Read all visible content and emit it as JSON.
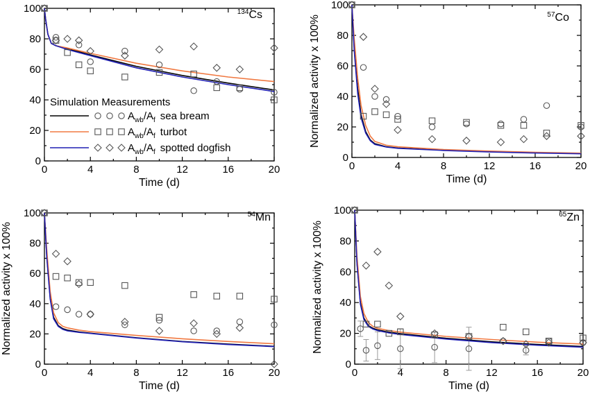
{
  "colors": {
    "sea_bream": "#000000",
    "turbot": "#F07840",
    "spotted_dogfish": "#1F1FB4",
    "marker": "#555555",
    "error_bar": "#999999"
  },
  "legend": {
    "header": "Simulation Measurements",
    "a_wb": "A",
    "wb_sub": "wb",
    "a_f": "/A",
    "f_sub": "f",
    "entries": [
      {
        "name": "sea bream",
        "marker": "circle"
      },
      {
        "name": "turbot",
        "marker": "square"
      },
      {
        "name": "spotted dogfish",
        "marker": "diamond"
      }
    ]
  },
  "chart_data": [
    {
      "type": "line",
      "panel": "top-left",
      "isotope_mass": "134",
      "isotope_symbol": "Cs",
      "xlabel": "Time (d)",
      "ylabel": "",
      "xlim": [
        0,
        20
      ],
      "ylim": [
        0,
        100
      ],
      "xticks": [
        0,
        4,
        8,
        12,
        16,
        20
      ],
      "yticks": [
        0,
        20,
        40,
        60,
        80,
        100
      ],
      "model": [
        {
          "name": "sea bream",
          "color": "#000000",
          "x": [
            0,
            0.1,
            0.3,
            0.6,
            1,
            2,
            4,
            8,
            12,
            16,
            20
          ],
          "y": [
            100,
            93,
            83,
            77,
            75.5,
            73.5,
            69.5,
            62,
            56,
            51,
            46.5
          ]
        },
        {
          "name": "turbot",
          "color": "#F07840",
          "x": [
            0,
            0.1,
            0.3,
            0.6,
            1,
            2,
            4,
            8,
            12,
            16,
            20
          ],
          "y": [
            100,
            93,
            83,
            77,
            75.5,
            74,
            70.5,
            64,
            59,
            55,
            52
          ]
        },
        {
          "name": "spotted dogfish",
          "color": "#1F1FB4",
          "x": [
            0,
            0.1,
            0.3,
            0.6,
            1,
            2,
            4,
            8,
            12,
            16,
            20
          ],
          "y": [
            100,
            93,
            83,
            77,
            75.5,
            73,
            69,
            61,
            55,
            50,
            45.5
          ]
        }
      ],
      "measurements": [
        {
          "name": "sea bream",
          "marker": "circle",
          "x": [
            0,
            1,
            3,
            4,
            7,
            10,
            13,
            15,
            17,
            20
          ],
          "y": [
            100,
            81,
            76,
            65,
            72,
            63,
            46,
            52,
            47,
            45
          ]
        },
        {
          "name": "turbot",
          "marker": "square",
          "x": [
            0,
            1,
            2,
            3,
            4,
            7,
            10,
            13,
            15,
            17,
            20
          ],
          "y": [
            100,
            79,
            71,
            63,
            59,
            55,
            58,
            57,
            48,
            48,
            40
          ]
        },
        {
          "name": "spotted dogfish",
          "marker": "diamond",
          "x": [
            0,
            1,
            2,
            3,
            4,
            7,
            10,
            13,
            15,
            17,
            20
          ],
          "y": [
            100,
            79,
            80,
            79,
            72,
            69,
            73,
            75,
            61,
            60,
            74
          ]
        }
      ]
    },
    {
      "type": "line",
      "panel": "top-right",
      "isotope_mass": "57",
      "isotope_symbol": "Co",
      "xlabel": "Time (d)",
      "ylabel": "Normalized activity x 100%",
      "xlim": [
        0,
        20
      ],
      "ylim": [
        0,
        100
      ],
      "xticks": [
        0,
        4,
        8,
        12,
        16,
        20
      ],
      "yticks": [
        0,
        20,
        40,
        60,
        80,
        100
      ],
      "model": [
        {
          "name": "sea bream",
          "color": "#000000",
          "x": [
            0,
            0.2,
            0.5,
            0.8,
            1.2,
            1.6,
            2,
            3,
            4,
            8,
            12,
            16,
            20
          ],
          "y": [
            100,
            72,
            45,
            28,
            17,
            11.5,
            9,
            7,
            6.2,
            4.8,
            3.8,
            3.1,
            2.6
          ]
        },
        {
          "name": "turbot",
          "color": "#F07840",
          "x": [
            0,
            0.2,
            0.5,
            0.8,
            1.2,
            1.6,
            2,
            3,
            4,
            8,
            12,
            16,
            20
          ],
          "y": [
            100,
            78,
            52,
            34,
            21,
            14,
            10.5,
            8,
            7,
            5.2,
            4.2,
            3.4,
            2.8
          ]
        },
        {
          "name": "spotted dogfish",
          "color": "#1F1FB4",
          "x": [
            0,
            0.2,
            0.5,
            0.8,
            1.2,
            1.6,
            2,
            3,
            4,
            8,
            12,
            16,
            20
          ],
          "y": [
            100,
            70,
            42,
            26,
            16,
            11,
            8.5,
            6.8,
            6,
            4.6,
            3.6,
            2.9,
            2.4
          ]
        }
      ],
      "measurements": [
        {
          "name": "sea bream",
          "marker": "circle",
          "x": [
            0,
            1,
            2,
            3,
            4,
            7,
            10,
            13,
            15,
            17,
            20
          ],
          "y": [
            100,
            59,
            40,
            38,
            27,
            20,
            22,
            22,
            25,
            34,
            20
          ]
        },
        {
          "name": "turbot",
          "marker": "square",
          "x": [
            0,
            1,
            2,
            3,
            4,
            7,
            10,
            13,
            15,
            17,
            20
          ],
          "y": [
            100,
            27,
            30,
            28,
            25,
            24,
            23,
            21,
            21,
            16,
            21
          ]
        },
        {
          "name": "spotted dogfish",
          "marker": "diamond",
          "x": [
            0,
            1,
            2,
            3,
            4,
            7,
            10,
            13,
            15,
            17,
            20
          ],
          "y": [
            100,
            79,
            45,
            35,
            18,
            12,
            11,
            10,
            12,
            14,
            14
          ]
        }
      ]
    },
    {
      "type": "line",
      "panel": "bottom-left",
      "isotope_mass": "54",
      "isotope_symbol": "Mn",
      "xlabel": "Time (d)",
      "ylabel": "Normalized activity x 100%",
      "xlim": [
        0,
        20
      ],
      "ylim": [
        0,
        100
      ],
      "xticks": [
        0,
        4,
        8,
        12,
        16,
        20
      ],
      "yticks": [
        0,
        20,
        40,
        60,
        80,
        100
      ],
      "model": [
        {
          "name": "sea bream",
          "color": "#000000",
          "x": [
            0,
            0.2,
            0.5,
            0.8,
            1.2,
            1.6,
            2,
            3,
            4,
            8,
            12,
            16,
            20
          ],
          "y": [
            100,
            72,
            44,
            31,
            25.5,
            23.5,
            22.5,
            21.3,
            20.5,
            17.5,
            15,
            13.3,
            11.8
          ]
        },
        {
          "name": "turbot",
          "color": "#F07840",
          "x": [
            0,
            0.2,
            0.5,
            0.8,
            1.2,
            1.6,
            2,
            3,
            4,
            8,
            12,
            16,
            20
          ],
          "y": [
            100,
            76,
            48,
            34,
            27.5,
            25,
            24,
            22.5,
            21.5,
            19,
            16.8,
            15,
            13.5
          ]
        },
        {
          "name": "spotted dogfish",
          "color": "#1F1FB4",
          "x": [
            0,
            0.2,
            0.5,
            0.8,
            1.2,
            1.6,
            2,
            3,
            4,
            8,
            12,
            16,
            20
          ],
          "y": [
            100,
            71,
            43,
            30,
            25,
            23,
            22,
            21,
            20.3,
            17.3,
            14.8,
            13,
            11.6
          ]
        }
      ],
      "measurements": [
        {
          "name": "sea bream",
          "marker": "circle",
          "x": [
            0,
            1,
            2,
            3,
            4,
            7,
            10,
            13,
            15,
            17,
            20
          ],
          "y": [
            100,
            38,
            36,
            33,
            33,
            26,
            29,
            22,
            22,
            28,
            26
          ]
        },
        {
          "name": "turbot",
          "marker": "square",
          "x": [
            0,
            1,
            2,
            3,
            4,
            7,
            10,
            13,
            15,
            17,
            20
          ],
          "y": [
            100,
            58,
            57,
            54,
            54,
            52,
            31,
            46,
            45,
            45,
            43
          ]
        },
        {
          "name": "spotted dogfish",
          "marker": "diamond",
          "x": [
            0,
            1,
            2,
            3,
            4,
            7,
            10,
            13,
            15,
            17,
            20
          ],
          "y": [
            100,
            73,
            68,
            53,
            33,
            28,
            22,
            27,
            20,
            24,
            0
          ]
        }
      ]
    },
    {
      "type": "line",
      "panel": "bottom-right",
      "isotope_mass": "65",
      "isotope_symbol": "Zn",
      "xlabel": "Time (d)",
      "ylabel": "Normalized activity x 100%",
      "xlim": [
        0,
        20
      ],
      "ylim": [
        0,
        100
      ],
      "xticks": [
        0,
        4,
        8,
        12,
        16,
        20
      ],
      "yticks": [
        0,
        20,
        40,
        60,
        80,
        100
      ],
      "model": [
        {
          "name": "sea bream",
          "color": "#000000",
          "x": [
            0,
            0.2,
            0.5,
            0.8,
            1.2,
            1.6,
            2,
            3,
            4,
            8,
            12,
            16,
            20
          ],
          "y": [
            100,
            66,
            40,
            30,
            25,
            23.3,
            22.3,
            20.8,
            19.8,
            16.8,
            14.5,
            12.8,
            11.5
          ]
        },
        {
          "name": "turbot",
          "color": "#F07840",
          "x": [
            0,
            0.2,
            0.5,
            0.8,
            1.2,
            1.6,
            2,
            3,
            4,
            8,
            12,
            16,
            20
          ],
          "y": [
            100,
            70,
            44,
            33,
            27,
            24.5,
            23.3,
            21.8,
            20.8,
            18,
            16,
            14.3,
            13
          ]
        },
        {
          "name": "spotted dogfish",
          "color": "#1F1FB4",
          "x": [
            0,
            0.2,
            0.5,
            0.8,
            1.2,
            1.6,
            2,
            3,
            4,
            8,
            12,
            16,
            20
          ],
          "y": [
            100,
            65,
            39,
            29,
            24.5,
            22.8,
            21.8,
            20.3,
            19.3,
            16.3,
            14,
            12.3,
            11
          ]
        }
      ],
      "measurements": [
        {
          "name": "sea bream",
          "marker": "circle",
          "x": [
            0,
            0.5,
            1,
            2,
            4,
            7,
            10,
            13,
            15,
            17,
            20
          ],
          "y": [
            100,
            23,
            9,
            12,
            10,
            11,
            10,
            15,
            9,
            15,
            14
          ],
          "err": [
            0,
            5,
            7,
            9,
            13,
            10,
            14,
            0,
            3,
            0,
            0
          ]
        },
        {
          "name": "turbot",
          "marker": "square",
          "x": [
            0,
            1,
            2,
            3,
            4,
            7,
            10,
            13,
            15,
            17,
            20
          ],
          "y": [
            100,
            26,
            26,
            20,
            21,
            19,
            18,
            24,
            21,
            15,
            17
          ]
        },
        {
          "name": "spotted dogfish",
          "marker": "diamond",
          "x": [
            0,
            1,
            2,
            3,
            4,
            7,
            10,
            13,
            15,
            17,
            20
          ],
          "y": [
            100,
            64,
            73,
            51,
            31,
            20,
            18,
            15,
            13,
            14,
            14
          ]
        }
      ]
    }
  ]
}
